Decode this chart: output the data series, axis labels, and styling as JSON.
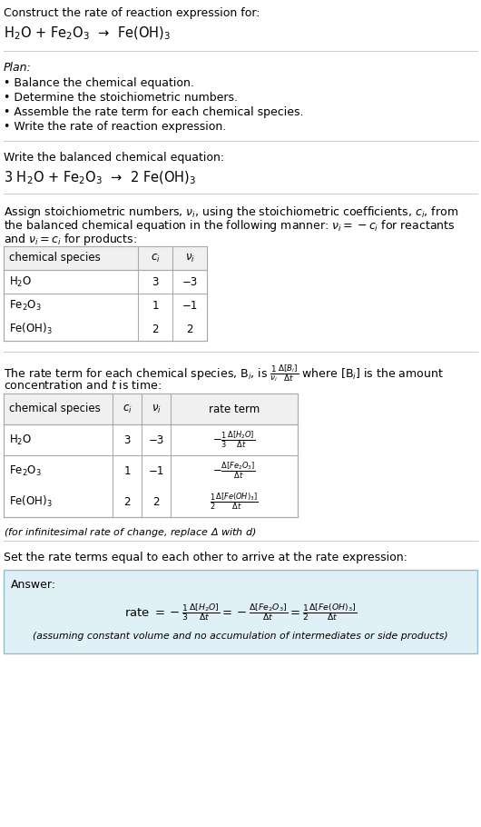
{
  "bg_color": "#ffffff",
  "text_color": "#000000",
  "title_line1": "Construct the rate of reaction expression for:",
  "reaction_unbalanced": "H$_2$O + Fe$_2$O$_3$  →  Fe(OH)$_3$",
  "plan_label": "Plan:",
  "plan_items": [
    "• Balance the chemical equation.",
    "• Determine the stoichiometric numbers.",
    "• Assemble the rate term for each chemical species.",
    "• Write the rate of reaction expression."
  ],
  "balanced_label": "Write the balanced chemical equation:",
  "reaction_balanced": "3 H$_2$O + Fe$_2$O$_3$  →  2 Fe(OH)$_3$",
  "assign_text1": "Assign stoichiometric numbers, $\\nu_i$, using the stoichiometric coefficients, $c_i$, from",
  "assign_text2": "the balanced chemical equation in the following manner: $\\nu_i = -c_i$ for reactants",
  "assign_text3": "and $\\nu_i = c_i$ for products:",
  "table1_headers": [
    "chemical species",
    "$c_i$",
    "$\\nu_i$"
  ],
  "table1_rows": [
    [
      "H$_2$O",
      "3",
      "−3"
    ],
    [
      "Fe$_2$O$_3$",
      "1",
      "−1"
    ],
    [
      "Fe(OH)$_3$",
      "2",
      "2"
    ]
  ],
  "rate_text1": "The rate term for each chemical species, B$_i$, is $\\frac{1}{\\nu_i}\\frac{\\Delta[B_i]}{\\Delta t}$ where [B$_i$] is the amount",
  "rate_text2": "concentration and $t$ is time:",
  "table2_headers": [
    "chemical species",
    "$c_i$",
    "$\\nu_i$",
    "rate term"
  ],
  "table2_rows": [
    [
      "H$_2$O",
      "3",
      "−3",
      "$-\\frac{1}{3}\\frac{\\Delta[H_2O]}{\\Delta t}$"
    ],
    [
      "Fe$_2$O$_3$",
      "1",
      "−1",
      "$-\\frac{\\Delta[Fe_2O_3]}{\\Delta t}$"
    ],
    [
      "Fe(OH)$_3$",
      "2",
      "2",
      "$\\frac{1}{2}\\frac{\\Delta[Fe(OH)_3]}{\\Delta t}$"
    ]
  ],
  "infinitesimal_note": "(for infinitesimal rate of change, replace Δ with $d$)",
  "set_text": "Set the rate terms equal to each other to arrive at the rate expression:",
  "answer_label": "Answer:",
  "answer_box_color": "#dff0f7",
  "answer_box_border": "#90bfd0",
  "answer_eq": "rate $= -\\frac{1}{3}\\frac{\\Delta[H_2O]}{\\Delta t} = -\\frac{\\Delta[Fe_2O_3]}{\\Delta t} = \\frac{1}{2}\\frac{\\Delta[Fe(OH)_3]}{\\Delta t}$",
  "answer_note": "(assuming constant volume and no accumulation of intermediates or side products)"
}
